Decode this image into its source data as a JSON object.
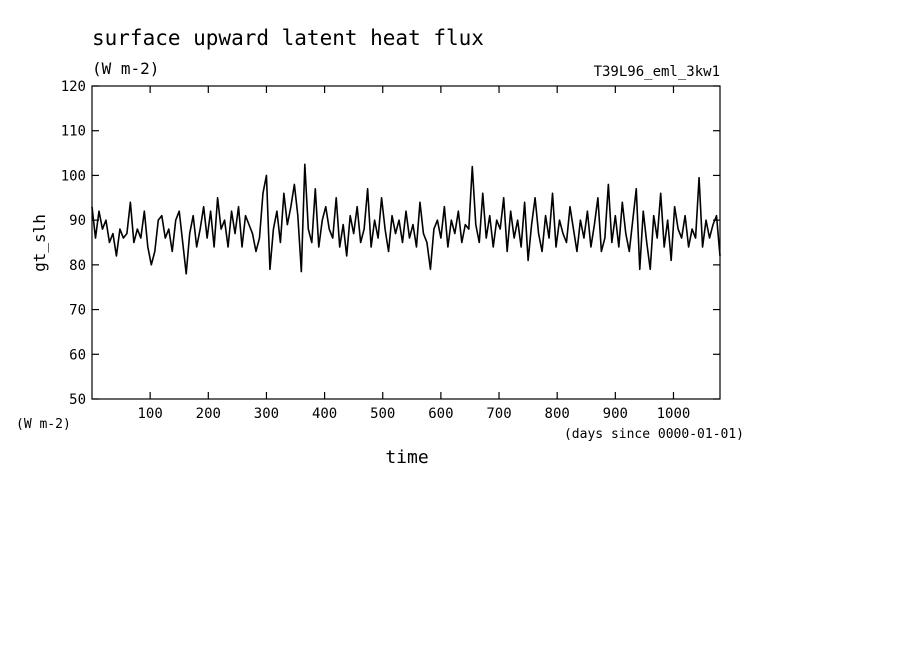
{
  "chart_data": {
    "type": "line",
    "title": "surface upward latent heat flux",
    "subtitle": "(W m-2)",
    "annotation": "T39L96_eml_3kw1",
    "ylabel": "gt_slh",
    "yunits": "(W m-2)",
    "xlabel": "time",
    "xunits": "(days since 0000-01-01)",
    "xlim": [
      0,
      1080
    ],
    "ylim": [
      50,
      120
    ],
    "xticks": [
      100,
      200,
      300,
      400,
      500,
      600,
      700,
      800,
      900,
      1000
    ],
    "yticks": [
      50,
      60,
      70,
      80,
      90,
      100,
      110,
      120
    ],
    "grid": false,
    "series": [
      {
        "color": "#000000",
        "x": [
          0,
          6,
          12,
          18,
          24,
          30,
          36,
          42,
          48,
          54,
          60,
          66,
          72,
          78,
          84,
          90,
          96,
          102,
          108,
          114,
          120,
          126,
          132,
          138,
          144,
          150,
          156,
          162,
          168,
          174,
          180,
          186,
          192,
          198,
          204,
          210,
          216,
          222,
          228,
          234,
          240,
          246,
          252,
          258,
          264,
          270,
          276,
          282,
          288,
          294,
          300,
          306,
          312,
          318,
          324,
          330,
          336,
          342,
          348,
          354,
          360,
          366,
          372,
          378,
          384,
          390,
          396,
          402,
          408,
          414,
          420,
          426,
          432,
          438,
          444,
          450,
          456,
          462,
          468,
          474,
          480,
          486,
          492,
          498,
          504,
          510,
          516,
          522,
          528,
          534,
          540,
          546,
          552,
          558,
          564,
          570,
          576,
          582,
          588,
          594,
          600,
          606,
          612,
          618,
          624,
          630,
          636,
          642,
          648,
          654,
          660,
          666,
          672,
          678,
          684,
          690,
          696,
          702,
          708,
          714,
          720,
          726,
          732,
          738,
          744,
          750,
          756,
          762,
          768,
          774,
          780,
          786,
          792,
          798,
          804,
          810,
          816,
          822,
          828,
          834,
          840,
          846,
          852,
          858,
          864,
          870,
          876,
          882,
          888,
          894,
          900,
          906,
          912,
          918,
          924,
          930,
          936,
          942,
          948,
          954,
          960,
          966,
          972,
          978,
          984,
          990,
          996,
          1002,
          1008,
          1014,
          1020,
          1026,
          1032,
          1038,
          1044,
          1050,
          1056,
          1062,
          1068,
          1074,
          1080
        ],
        "values": [
          93,
          86,
          92,
          88,
          90,
          85,
          87,
          82,
          88,
          86,
          87,
          94,
          85,
          88,
          86,
          92,
          84,
          80,
          83,
          90,
          91,
          86,
          88,
          83,
          90,
          92,
          85,
          78,
          87,
          91,
          84,
          88,
          93,
          86,
          92,
          84,
          95,
          88,
          90,
          84,
          92,
          87,
          93,
          84,
          91,
          89,
          87,
          83,
          86,
          96,
          100,
          79,
          88,
          92,
          85,
          96,
          89,
          93,
          98,
          91,
          78.5,
          102.5,
          88,
          85,
          97,
          84,
          90,
          93,
          88,
          86,
          95,
          84,
          89,
          82,
          91,
          87,
          93,
          85,
          88,
          97,
          84,
          90,
          86,
          95,
          88,
          83,
          91,
          87,
          90,
          85,
          92,
          86,
          89,
          84,
          94,
          87,
          85,
          79,
          88,
          90,
          86,
          93,
          84,
          90,
          87,
          92,
          85,
          89,
          88,
          102,
          89,
          85,
          96,
          86,
          91,
          84,
          90,
          88,
          95,
          83,
          92,
          86,
          90,
          84,
          94,
          81,
          89,
          95,
          87,
          83,
          91,
          86,
          96,
          84,
          90,
          87,
          85,
          93,
          88,
          83,
          90,
          86,
          92,
          84,
          89,
          95,
          83,
          86,
          98,
          85,
          91,
          84,
          94,
          87,
          83,
          90,
          97,
          79,
          92,
          85,
          79,
          91,
          86,
          96,
          84,
          90,
          81,
          93,
          88,
          86,
          91,
          84,
          88,
          86,
          99.5,
          84,
          90,
          86,
          89,
          91,
          82
        ]
      }
    ]
  }
}
